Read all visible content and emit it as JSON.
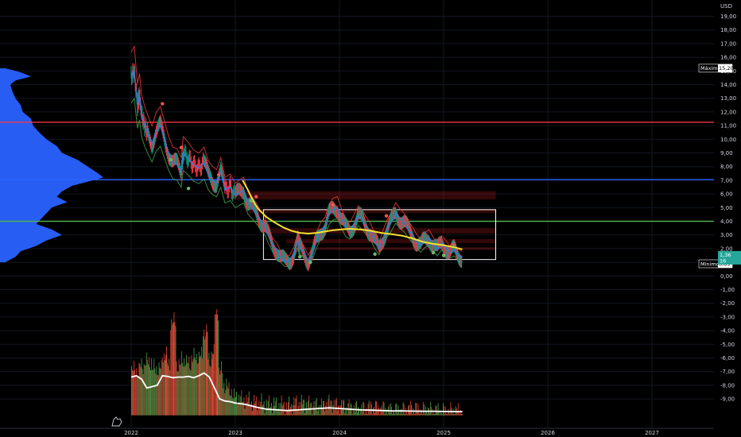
{
  "chart_data": {
    "type": "candlestick",
    "currency": "USD",
    "y_ticks": [
      "19,00",
      "18,00",
      "17,00",
      "16,00",
      "15,00",
      "14,00",
      "13,00",
      "12,00",
      "11,00",
      "10,00",
      "9,00",
      "8,00",
      "7,00",
      "6,00",
      "5,00",
      "4,00",
      "3,00",
      "2,00",
      "1,00",
      "0,00",
      "-1,00",
      "-2,00",
      "-3,00",
      "-4,00",
      "-5,00",
      "-6,00",
      "-7,00",
      "-8,00",
      "-9,00"
    ],
    "y_tick_values": [
      19,
      18,
      17,
      16,
      15,
      14,
      13,
      12,
      11,
      10,
      9,
      8,
      7,
      6,
      5,
      4,
      3,
      2,
      1,
      0,
      -1,
      -2,
      -3,
      -4,
      -5,
      -6,
      -7,
      -8,
      -9
    ],
    "ylim": [
      -10.0,
      20.0
    ],
    "x_ticks": [
      "2022",
      "2023",
      "2024",
      "2025",
      "2026",
      "2027"
    ],
    "x_tick_years": [
      2022,
      2023,
      2024,
      2025,
      2026,
      2027
    ],
    "xlim": [
      2021.5,
      2027.8
    ],
    "max_label": "Máximo",
    "max_value": "15,20",
    "min_label": "Mínimo",
    "min_value": "0,89",
    "last_value": "1,36",
    "last_countdown": "16",
    "horizontal_lines": [
      {
        "name": "resistance-red",
        "value": 11.25,
        "color": "#f23645"
      },
      {
        "name": "level-blue",
        "value": 7.05,
        "color": "#2962ff"
      },
      {
        "name": "support-green",
        "value": 4.0,
        "color": "#4caf50"
      }
    ],
    "range_box": {
      "from": 2023.27,
      "to": 2025.5,
      "high": 4.85,
      "low": 1.2,
      "color": "#ffffff"
    },
    "price_path": [
      [
        2022.0,
        14.6
      ],
      [
        2022.03,
        15.0
      ],
      [
        2022.06,
        12.5
      ],
      [
        2022.08,
        13.2
      ],
      [
        2022.1,
        11.8
      ],
      [
        2022.13,
        11.0
      ],
      [
        2022.16,
        10.4
      ],
      [
        2022.2,
        9.7
      ],
      [
        2022.24,
        10.6
      ],
      [
        2022.28,
        11.0
      ],
      [
        2022.32,
        10.0
      ],
      [
        2022.36,
        9.0
      ],
      [
        2022.4,
        8.3
      ],
      [
        2022.44,
        8.2
      ],
      [
        2022.48,
        7.6
      ],
      [
        2022.5,
        9.0
      ],
      [
        2022.55,
        8.6
      ],
      [
        2022.6,
        8.1
      ],
      [
        2022.65,
        7.9
      ],
      [
        2022.7,
        8.3
      ],
      [
        2022.74,
        7.4
      ],
      [
        2022.78,
        7.0
      ],
      [
        2022.82,
        6.8
      ],
      [
        2022.86,
        7.6
      ],
      [
        2022.9,
        6.3
      ],
      [
        2022.95,
        6.5
      ],
      [
        2023.0,
        5.9
      ],
      [
        2023.04,
        6.1
      ],
      [
        2023.08,
        6.3
      ],
      [
        2023.12,
        5.4
      ],
      [
        2023.16,
        5.0
      ],
      [
        2023.2,
        4.6
      ],
      [
        2023.24,
        4.1
      ],
      [
        2023.28,
        3.7
      ],
      [
        2023.32,
        2.9
      ],
      [
        2023.36,
        2.2
      ],
      [
        2023.4,
        1.9
      ],
      [
        2023.44,
        1.3
      ],
      [
        2023.48,
        1.0
      ],
      [
        2023.52,
        1.1
      ],
      [
        2023.56,
        1.6
      ],
      [
        2023.6,
        2.6
      ],
      [
        2023.62,
        2.1
      ],
      [
        2023.66,
        1.7
      ],
      [
        2023.7,
        1.1
      ],
      [
        2023.74,
        1.6
      ],
      [
        2023.78,
        2.6
      ],
      [
        2023.82,
        3.3
      ],
      [
        2023.86,
        3.6
      ],
      [
        2023.9,
        4.5
      ],
      [
        2023.94,
        4.9
      ],
      [
        2023.98,
        5.0
      ],
      [
        2024.02,
        4.2
      ],
      [
        2024.06,
        3.5
      ],
      [
        2024.1,
        3.3
      ],
      [
        2024.14,
        3.8
      ],
      [
        2024.18,
        4.4
      ],
      [
        2024.22,
        4.1
      ],
      [
        2024.26,
        3.6
      ],
      [
        2024.3,
        3.2
      ],
      [
        2024.34,
        2.5
      ],
      [
        2024.38,
        2.0
      ],
      [
        2024.42,
        2.8
      ],
      [
        2024.46,
        3.5
      ],
      [
        2024.5,
        4.0
      ],
      [
        2024.54,
        4.6
      ],
      [
        2024.58,
        4.2
      ],
      [
        2024.62,
        3.9
      ],
      [
        2024.66,
        3.4
      ],
      [
        2024.7,
        3.0
      ],
      [
        2024.74,
        2.5
      ],
      [
        2024.78,
        2.2
      ],
      [
        2024.82,
        2.6
      ],
      [
        2024.86,
        2.8
      ],
      [
        2024.9,
        2.3
      ],
      [
        2024.94,
        1.9
      ],
      [
        2024.98,
        2.4
      ],
      [
        2025.02,
        2.1
      ],
      [
        2025.06,
        1.7
      ],
      [
        2025.1,
        1.9
      ],
      [
        2025.14,
        1.5
      ],
      [
        2025.18,
        1.36
      ]
    ],
    "red_markers": [
      [
        2022.3,
        12.6
      ],
      [
        2022.48,
        9.4
      ],
      [
        2022.84,
        7.4
      ],
      [
        2023.2,
        5.8
      ],
      [
        2023.94,
        5.2
      ],
      [
        2024.45,
        4.4
      ],
      [
        2025.1,
        2.3
      ]
    ],
    "green_markers": [
      [
        2022.38,
        8.5
      ],
      [
        2022.55,
        6.4
      ],
      [
        2023.15,
        5.5
      ],
      [
        2023.62,
        1.4
      ],
      [
        2023.72,
        1.0
      ],
      [
        2024.34,
        1.6
      ],
      [
        2024.9,
        1.7
      ],
      [
        2025.0,
        1.5
      ]
    ],
    "moving_average_yellow": [
      [
        2023.07,
        7.0
      ],
      [
        2023.12,
        6.3
      ],
      [
        2023.17,
        5.5
      ],
      [
        2023.22,
        4.9
      ],
      [
        2023.3,
        4.3
      ],
      [
        2023.38,
        3.9
      ],
      [
        2023.46,
        3.55
      ],
      [
        2023.54,
        3.3
      ],
      [
        2023.62,
        3.15
      ],
      [
        2023.7,
        3.1
      ],
      [
        2023.78,
        3.15
      ],
      [
        2023.86,
        3.25
      ],
      [
        2023.94,
        3.35
      ],
      [
        2024.02,
        3.4
      ],
      [
        2024.1,
        3.45
      ],
      [
        2024.2,
        3.4
      ],
      [
        2024.3,
        3.3
      ],
      [
        2024.4,
        3.15
      ],
      [
        2024.5,
        3.05
      ],
      [
        2024.6,
        2.95
      ],
      [
        2024.7,
        2.75
      ],
      [
        2024.8,
        2.5
      ],
      [
        2024.9,
        2.35
      ],
      [
        2025.0,
        2.25
      ],
      [
        2025.1,
        2.1
      ],
      [
        2025.18,
        1.95
      ]
    ],
    "volume_line": [
      [
        2022.0,
        -7.4
      ],
      [
        2022.05,
        -7.3
      ],
      [
        2022.1,
        -7.55
      ],
      [
        2022.15,
        -8.2
      ],
      [
        2022.2,
        -8.1
      ],
      [
        2022.25,
        -8.0
      ],
      [
        2022.3,
        -7.3
      ],
      [
        2022.35,
        -7.35
      ],
      [
        2022.4,
        -7.45
      ],
      [
        2022.45,
        -7.4
      ],
      [
        2022.5,
        -7.4
      ],
      [
        2022.55,
        -7.35
      ],
      [
        2022.6,
        -7.45
      ],
      [
        2022.65,
        -7.3
      ],
      [
        2022.7,
        -7.1
      ],
      [
        2022.75,
        -7.4
      ],
      [
        2022.8,
        -8.2
      ],
      [
        2022.85,
        -9.0
      ],
      [
        2022.9,
        -9.15
      ],
      [
        2022.95,
        -9.2
      ],
      [
        2023.0,
        -9.3
      ],
      [
        2023.05,
        -9.35
      ],
      [
        2023.1,
        -9.4
      ],
      [
        2023.15,
        -9.5
      ],
      [
        2023.2,
        -9.6
      ],
      [
        2023.3,
        -9.75
      ],
      [
        2023.4,
        -9.8
      ],
      [
        2023.5,
        -9.85
      ],
      [
        2023.6,
        -9.8
      ],
      [
        2023.7,
        -9.75
      ],
      [
        2023.8,
        -9.7
      ],
      [
        2023.9,
        -9.65
      ],
      [
        2024.0,
        -9.7
      ],
      [
        2024.1,
        -9.75
      ],
      [
        2024.2,
        -9.8
      ],
      [
        2024.3,
        -9.82
      ],
      [
        2024.4,
        -9.85
      ],
      [
        2024.5,
        -9.87
      ],
      [
        2024.6,
        -9.88
      ],
      [
        2024.7,
        -9.89
      ],
      [
        2024.8,
        -9.9
      ],
      [
        2024.9,
        -9.9
      ],
      [
        2025.0,
        -9.92
      ],
      [
        2025.18,
        -9.93
      ]
    ],
    "volume_spikes": [
      [
        2022.05,
        -6.9
      ],
      [
        2022.1,
        -6.6
      ],
      [
        2022.15,
        -6.3
      ],
      [
        2022.25,
        -6.8
      ],
      [
        2022.33,
        -5.8
      ],
      [
        2022.35,
        -6.5
      ],
      [
        2022.4,
        -3.4
      ],
      [
        2022.45,
        -6.5
      ],
      [
        2022.5,
        -6.2
      ],
      [
        2022.55,
        -6.4
      ],
      [
        2022.6,
        -6.0
      ],
      [
        2022.65,
        -5.9
      ],
      [
        2022.72,
        -4.1
      ],
      [
        2022.75,
        -6.2
      ],
      [
        2022.78,
        -5.7
      ],
      [
        2022.82,
        -2.8
      ],
      [
        2022.85,
        -7.0
      ],
      [
        2022.9,
        -8.0
      ],
      [
        2022.95,
        -8.4
      ],
      [
        2023.0,
        -8.9
      ],
      [
        2023.1,
        -9.1
      ],
      [
        2023.2,
        -9.3
      ],
      [
        2023.3,
        -9.4
      ],
      [
        2023.4,
        -9.4
      ],
      [
        2023.5,
        -9.5
      ],
      [
        2023.6,
        -9.3
      ],
      [
        2023.7,
        -9.4
      ],
      [
        2023.8,
        -9.5
      ],
      [
        2023.9,
        -9.3
      ],
      [
        2024.0,
        -9.5
      ],
      [
        2024.1,
        -9.6
      ],
      [
        2024.2,
        -9.7
      ],
      [
        2024.3,
        -9.6
      ],
      [
        2024.4,
        -9.7
      ],
      [
        2024.5,
        -9.8
      ],
      [
        2024.6,
        -9.8
      ],
      [
        2024.7,
        -9.7
      ],
      [
        2024.8,
        -9.8
      ],
      [
        2024.9,
        -9.85
      ],
      [
        2025.0,
        -9.9
      ]
    ],
    "volume_profile": [
      [
        15.2,
        0.05
      ],
      [
        14.9,
        0.2
      ],
      [
        14.6,
        0.3
      ],
      [
        14.3,
        0.15
      ],
      [
        14.0,
        0.1
      ],
      [
        13.5,
        0.12
      ],
      [
        13.0,
        0.15
      ],
      [
        12.5,
        0.2
      ],
      [
        12.0,
        0.22
      ],
      [
        11.5,
        0.3
      ],
      [
        11.0,
        0.32
      ],
      [
        10.5,
        0.38
      ],
      [
        10.0,
        0.45
      ],
      [
        9.5,
        0.55
      ],
      [
        9.0,
        0.6
      ],
      [
        8.5,
        0.75
      ],
      [
        8.0,
        0.85
      ],
      [
        7.5,
        0.95
      ],
      [
        7.2,
        1.0
      ],
      [
        7.0,
        0.9
      ],
      [
        6.6,
        0.7
      ],
      [
        6.2,
        0.6
      ],
      [
        5.8,
        0.55
      ],
      [
        5.4,
        0.65
      ],
      [
        5.0,
        0.5
      ],
      [
        4.6,
        0.45
      ],
      [
        4.2,
        0.4
      ],
      [
        3.8,
        0.35
      ],
      [
        3.4,
        0.5
      ],
      [
        3.0,
        0.6
      ],
      [
        2.6,
        0.45
      ],
      [
        2.2,
        0.35
      ],
      [
        1.8,
        0.2
      ],
      [
        1.4,
        0.15
      ],
      [
        1.0,
        0.05
      ]
    ]
  },
  "colors": {
    "background": "#000000",
    "grid": "#131722",
    "candle_up": "#089981",
    "candle_down": "#f23645",
    "price_line_blue": "#2f7bd9",
    "trail_red": "#e53935",
    "trail_green": "#43a047",
    "ma_yellow": "#f7e12d",
    "volume_white": "#ffffff",
    "volume_up": "#4caf50",
    "volume_down": "#f44336",
    "volume_profile": "#2962ff",
    "last_price_tag": "#26a69a"
  }
}
